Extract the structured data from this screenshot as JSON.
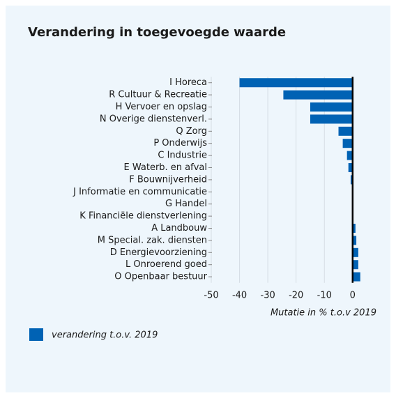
{
  "chart_data": {
    "type": "barh",
    "title": "Verandering in toegevoegde waarde",
    "categories": [
      "I Horeca",
      "R Cultuur & Recreatie",
      "H Vervoer en opslag",
      "N Overige dienstenverl.",
      "Q  Zorg",
      "P  Onderwijs",
      "C Industrie",
      "E Waterb. en afval",
      "F Bouwnijverheid",
      "J Informatie en communicatie",
      "G Handel",
      "K Financiële dienstverlening",
      "A Landbouw",
      "M Special. zak. diensten",
      "D Energievoorziening",
      "L Onroerend goed",
      "O Openbaar bestuur"
    ],
    "series": [
      {
        "name": "verandering t.o.v. 2019",
        "color": "#0062b4",
        "values": [
          -40,
          -24.5,
          -15,
          -15,
          -5,
          -3.5,
          -2,
          -1.5,
          -0.7,
          0,
          0,
          0,
          1,
          1.3,
          2,
          2,
          2.7
        ]
      }
    ],
    "xlim": [
      -50,
      3.5
    ],
    "xticks": [
      -50,
      -40,
      -30,
      -20,
      -10,
      0
    ],
    "xlabel": "Mutatie in % t.o.v 2019",
    "grid": true
  }
}
